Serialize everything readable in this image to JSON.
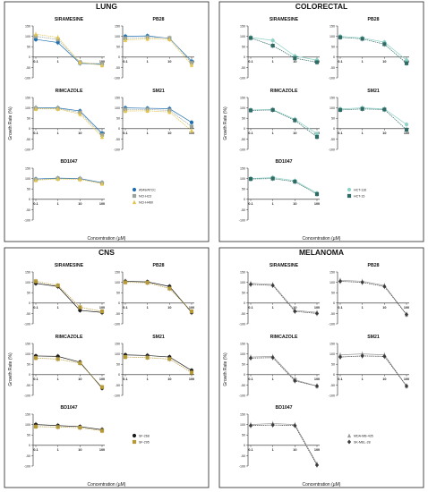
{
  "chart_data": [
    {
      "type": "line",
      "panel_title": "LUNG",
      "ylabel": "Growth Rate (%)",
      "xlabel": "Concentration (µM)",
      "x_ticks": [
        "0.1",
        "1",
        "10",
        "100"
      ],
      "legend": [
        {
          "name": "A549/ATCC",
          "color": "#1f6fb0",
          "marker": "circle"
        },
        {
          "name": "NCI-H23",
          "color": "#9aa39a",
          "marker": "square"
        },
        {
          "name": "NCI-H460",
          "color": "#e2c44a",
          "marker": "triangle"
        }
      ],
      "subplots": [
        {
          "title": "SIRAMESINE",
          "x": [
            0.1,
            1,
            10,
            100
          ],
          "yrange": [
            -100,
            150
          ],
          "yticks": [
            "150",
            "100",
            "50",
            "0",
            "-50",
            "-100"
          ],
          "series": [
            {
              "name": "A549/ATCC",
              "values": [
                85,
                70,
                -30,
                -35
              ]
            },
            {
              "name": "NCI-H23",
              "values": [
                100,
                85,
                -28,
                -32
              ]
            },
            {
              "name": "NCI-H460",
              "values": [
                110,
                95,
                -25,
                -40
              ]
            }
          ]
        },
        {
          "title": "PB28",
          "x": [
            0.1,
            1,
            10,
            100
          ],
          "yrange": [
            -100,
            150
          ],
          "yticks": [
            "150",
            "100",
            "50",
            "0",
            "-50",
            "-100"
          ],
          "series": [
            {
              "name": "A549/ATCC",
              "values": [
                100,
                102,
                90,
                -20
              ]
            },
            {
              "name": "NCI-H23",
              "values": [
                90,
                95,
                92,
                -28
              ]
            },
            {
              "name": "NCI-H460",
              "values": [
                82,
                88,
                85,
                -38
              ]
            }
          ]
        },
        {
          "title": "RIMCAZOLE",
          "x": [
            0.1,
            1,
            10,
            100
          ],
          "yrange": [
            -100,
            150
          ],
          "yticks": [
            "150",
            "100",
            "50",
            "0",
            "-50",
            "-100"
          ],
          "series": [
            {
              "name": "A549/ATCC",
              "values": [
                100,
                100,
                85,
                -22
              ]
            },
            {
              "name": "NCI-H23",
              "values": [
                98,
                97,
                78,
                -30
              ]
            },
            {
              "name": "NCI-H460",
              "values": [
                95,
                95,
                70,
                -40
              ]
            }
          ]
        },
        {
          "title": "SM21",
          "x": [
            0.1,
            1,
            10,
            100
          ],
          "yrange": [
            -100,
            150
          ],
          "yticks": [
            "150",
            "100",
            "50",
            "0",
            "-50",
            "-100"
          ],
          "series": [
            {
              "name": "A549/ATCC",
              "values": [
                100,
                98,
                96,
                30
              ]
            },
            {
              "name": "NCI-H23",
              "values": [
                92,
                92,
                88,
                10
              ]
            },
            {
              "name": "NCI-H460",
              "values": [
                85,
                86,
                80,
                -10
              ]
            }
          ]
        },
        {
          "title": "BD1047",
          "x": [
            0.1,
            1,
            10,
            100
          ],
          "yrange": [
            -100,
            150
          ],
          "yticks": [
            "150",
            "100",
            "50",
            "0",
            "-50",
            "-100"
          ],
          "series": [
            {
              "name": "A549/ATCC",
              "values": [
                98,
                102,
                100,
                80
              ]
            },
            {
              "name": "NCI-H23",
              "values": [
                95,
                100,
                98,
                78
              ]
            },
            {
              "name": "NCI-H460",
              "values": [
                92,
                98,
                96,
                75
              ]
            }
          ]
        }
      ]
    },
    {
      "type": "line",
      "panel_title": "COLORECTAL",
      "ylabel": "Growth Rate (%)",
      "xlabel": "Concentration (µM)",
      "x_ticks": [
        "0.1",
        "1",
        "10",
        "100"
      ],
      "legend": [
        {
          "name": "HCT-116",
          "color": "#8fd3c7",
          "marker": "circle"
        },
        {
          "name": "HCT-15",
          "color": "#2f6b65",
          "marker": "square"
        }
      ],
      "subplots": [
        {
          "title": "SIRAMESINE",
          "x": [
            0.1,
            1,
            10,
            100
          ],
          "yrange": [
            -100,
            150
          ],
          "yticks": [
            "150",
            "100",
            "50",
            "0",
            "-50",
            "-100"
          ],
          "series": [
            {
              "name": "HCT-116",
              "values": [
                95,
                80,
                5,
                -15
              ]
            },
            {
              "name": "HCT-15",
              "values": [
                92,
                55,
                -5,
                -25
              ]
            }
          ]
        },
        {
          "title": "PB28",
          "x": [
            0.1,
            1,
            10,
            100
          ],
          "yrange": [
            -100,
            150
          ],
          "yticks": [
            "150",
            "100",
            "50",
            "0",
            "-50",
            "-100"
          ],
          "series": [
            {
              "name": "HCT-116",
              "values": [
                100,
                92,
                72,
                -15
              ]
            },
            {
              "name": "HCT-15",
              "values": [
                95,
                88,
                62,
                -30
              ]
            }
          ]
        },
        {
          "title": "RIMCAZOLE",
          "x": [
            0.1,
            1,
            10,
            100
          ],
          "yrange": [
            -100,
            150
          ],
          "yticks": [
            "150",
            "100",
            "50",
            "0",
            "-50",
            "-100"
          ],
          "series": [
            {
              "name": "HCT-116",
              "values": [
                90,
                92,
                45,
                -25
              ]
            },
            {
              "name": "HCT-15",
              "values": [
                88,
                90,
                40,
                -40
              ]
            }
          ]
        },
        {
          "title": "SM21",
          "x": [
            0.1,
            1,
            10,
            100
          ],
          "yrange": [
            -100,
            150
          ],
          "yticks": [
            "150",
            "100",
            "50",
            "0",
            "-50",
            "-100"
          ],
          "series": [
            {
              "name": "HCT-116",
              "values": [
                95,
                100,
                95,
                20
              ]
            },
            {
              "name": "HCT-15",
              "values": [
                90,
                95,
                92,
                -5
              ]
            }
          ]
        },
        {
          "title": "BD1047",
          "x": [
            0.1,
            1,
            10,
            100
          ],
          "yrange": [
            -100,
            150
          ],
          "yticks": [
            "150",
            "100",
            "50",
            "0",
            "-50",
            "-100"
          ],
          "series": [
            {
              "name": "HCT-116",
              "values": [
                100,
                105,
                90,
                30
              ]
            },
            {
              "name": "HCT-15",
              "values": [
                98,
                100,
                85,
                25
              ]
            }
          ]
        }
      ]
    },
    {
      "type": "line",
      "panel_title": "CNS",
      "ylabel": "Growth Rate (%)",
      "xlabel": "Concentration (µM)",
      "x_ticks": [
        "0.1",
        "1",
        "10",
        "100"
      ],
      "legend": [
        {
          "name": "SF-268",
          "color": "#1a1a1a",
          "marker": "circle"
        },
        {
          "name": "SF-295",
          "color": "#b59a3a",
          "marker": "square"
        }
      ],
      "subplots": [
        {
          "title": "SIRAMESINE",
          "x": [
            0.1,
            1,
            10,
            100
          ],
          "yrange": [
            -100,
            150
          ],
          "yticks": [
            "150",
            "100",
            "50",
            "0",
            "-50",
            "-100"
          ],
          "series": [
            {
              "name": "SF-268",
              "values": [
                95,
                80,
                -35,
                -45
              ]
            },
            {
              "name": "SF-295",
              "values": [
                105,
                85,
                -20,
                -40
              ]
            }
          ]
        },
        {
          "title": "PB28",
          "x": [
            0.1,
            1,
            10,
            100
          ],
          "yrange": [
            -100,
            150
          ],
          "yticks": [
            "150",
            "100",
            "50",
            "0",
            "-50",
            "-100"
          ],
          "series": [
            {
              "name": "SF-268",
              "values": [
                105,
                102,
                80,
                -45
              ]
            },
            {
              "name": "SF-295",
              "values": [
                100,
                98,
                70,
                -40
              ]
            }
          ]
        },
        {
          "title": "RIMCAZOLE",
          "x": [
            0.1,
            1,
            10,
            100
          ],
          "yrange": [
            -100,
            150
          ],
          "yticks": [
            "150",
            "100",
            "50",
            "0",
            "-50",
            "-100"
          ],
          "series": [
            {
              "name": "SF-268",
              "values": [
                90,
                88,
                60,
                -65
              ]
            },
            {
              "name": "SF-295",
              "values": [
                80,
                75,
                55,
                -60
              ]
            }
          ]
        },
        {
          "title": "SM21",
          "x": [
            0.1,
            1,
            10,
            100
          ],
          "yrange": [
            -100,
            150
          ],
          "yticks": [
            "150",
            "100",
            "50",
            "0",
            "-50",
            "-100"
          ],
          "series": [
            {
              "name": "SF-268",
              "values": [
                95,
                92,
                85,
                20
              ]
            },
            {
              "name": "SF-295",
              "values": [
                85,
                82,
                75,
                10
              ]
            }
          ]
        },
        {
          "title": "BD1047",
          "x": [
            0.1,
            1,
            10,
            100
          ],
          "yrange": [
            -100,
            150
          ],
          "yticks": [
            "150",
            "100",
            "50",
            "0",
            "-50",
            "-100"
          ],
          "series": [
            {
              "name": "SF-268",
              "values": [
                100,
                95,
                90,
                75
              ]
            },
            {
              "name": "SF-295",
              "values": [
                90,
                88,
                85,
                70
              ]
            }
          ]
        }
      ]
    },
    {
      "type": "line",
      "panel_title": "MELANOMA",
      "ylabel": "Growth Rate (%)",
      "xlabel": "Concentration (µM)",
      "x_ticks": [
        "0.1",
        "1",
        "10",
        "100"
      ],
      "legend": [
        {
          "name": "MDA-MB-435",
          "color": "#9a9a9a",
          "marker": "triangle"
        },
        {
          "name": "SK-MEL-28",
          "color": "#3b3b3b",
          "marker": "diamond"
        }
      ],
      "subplots": [
        {
          "title": "SIRAMESINE",
          "x": [
            0.1,
            1,
            10,
            100
          ],
          "yrange": [
            -100,
            150
          ],
          "yticks": [
            "150",
            "100",
            "50",
            "0",
            "-50",
            "-100"
          ],
          "series": [
            {
              "name": "MDA-MB-435",
              "values": [
                95,
                90,
                -35,
                -45
              ]
            },
            {
              "name": "SK-MEL-28",
              "values": [
                90,
                85,
                -40,
                -50
              ]
            }
          ]
        },
        {
          "title": "PB28",
          "x": [
            0.1,
            1,
            10,
            100
          ],
          "yrange": [
            -100,
            150
          ],
          "yticks": [
            "150",
            "100",
            "50",
            "0",
            "-50",
            "-100"
          ],
          "series": [
            {
              "name": "MDA-MB-435",
              "values": [
                110,
                105,
                85,
                -55
              ]
            },
            {
              "name": "SK-MEL-28",
              "values": [
                105,
                100,
                80,
                -55
              ]
            }
          ]
        },
        {
          "title": "RIMCAZOLE",
          "x": [
            0.1,
            1,
            10,
            100
          ],
          "yrange": [
            -100,
            150
          ],
          "yticks": [
            "150",
            "100",
            "50",
            "0",
            "-50",
            "-100"
          ],
          "series": [
            {
              "name": "MDA-MB-435",
              "values": [
                85,
                88,
                -25,
                -55
              ]
            },
            {
              "name": "SK-MEL-28",
              "values": [
                80,
                82,
                -30,
                -55
              ]
            }
          ]
        },
        {
          "title": "SM21",
          "x": [
            0.1,
            1,
            10,
            100
          ],
          "yrange": [
            -100,
            150
          ],
          "yticks": [
            "150",
            "100",
            "50",
            "0",
            "-50",
            "-100"
          ],
          "series": [
            {
              "name": "MDA-MB-435",
              "values": [
                95,
                100,
                95,
                -55
              ]
            },
            {
              "name": "SK-MEL-28",
              "values": [
                85,
                90,
                88,
                -55
              ]
            }
          ]
        },
        {
          "title": "BD1047",
          "x": [
            0.1,
            1,
            10,
            100
          ],
          "yrange": [
            -100,
            150
          ],
          "yticks": [
            "150",
            "100",
            "50",
            "0",
            "-50",
            "-100"
          ],
          "series": [
            {
              "name": "MDA-MB-435",
              "values": [
                100,
                105,
                100,
                -90
              ]
            },
            {
              "name": "SK-MEL-28",
              "values": [
                95,
                98,
                95,
                -95
              ]
            }
          ]
        }
      ]
    }
  ]
}
